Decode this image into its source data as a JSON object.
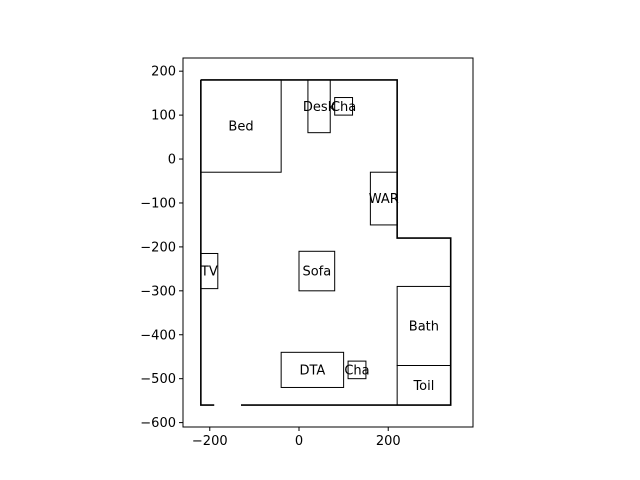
{
  "chart_data": {
    "type": "floor-plan",
    "xlim": [
      -260,
      390
    ],
    "ylim": [
      -610,
      230
    ],
    "x_ticks": [
      -200,
      0,
      200
    ],
    "y_ticks": [
      200,
      100,
      0,
      -100,
      -200,
      -300,
      -400,
      -500,
      -600
    ],
    "x_tick_labels": [
      "−200",
      "0",
      "200"
    ],
    "y_tick_labels": [
      "200",
      "100",
      "0",
      "−100",
      "−200",
      "−300",
      "−400",
      "−500",
      "−600"
    ],
    "wall_outline": [
      [
        -220,
        180
      ],
      [
        220,
        180
      ],
      [
        220,
        -180
      ],
      [
        340,
        -180
      ],
      [
        340,
        -560
      ],
      [
        -220,
        -560
      ],
      [
        -220,
        180
      ]
    ],
    "door_gaps": [
      {
        "from": [
          -190,
          -560
        ],
        "to": [
          -130,
          -560
        ]
      },
      {
        "from": [
          220,
          -350
        ],
        "to": [
          220,
          -410
        ]
      }
    ],
    "rooms": [
      {
        "id": "bed",
        "label": "Bed",
        "x0": -220,
        "y0": -30,
        "x1": -40,
        "y1": 180
      },
      {
        "id": "desk",
        "label": "Desk",
        "x0": 20,
        "y0": 60,
        "x1": 70,
        "y1": 180
      },
      {
        "id": "chair-top",
        "label": "Cha",
        "x0": 80,
        "y0": 100,
        "x1": 120,
        "y1": 140
      },
      {
        "id": "wardrobe",
        "label": "WAR",
        "x0": 160,
        "y0": -150,
        "x1": 220,
        "y1": -30
      },
      {
        "id": "tv",
        "label": "TV",
        "x0": -220,
        "y0": -295,
        "x1": -182,
        "y1": -215
      },
      {
        "id": "sofa",
        "label": "Sofa",
        "x0": 0,
        "y0": -300,
        "x1": 80,
        "y1": -210
      },
      {
        "id": "bath",
        "label": "Bath",
        "x0": 220,
        "y0": -470,
        "x1": 340,
        "y1": -290
      },
      {
        "id": "toilet",
        "label": "Toil",
        "x0": 220,
        "y0": -560,
        "x1": 340,
        "y1": -470
      },
      {
        "id": "dta",
        "label": "DTA",
        "x0": -40,
        "y0": -520,
        "x1": 100,
        "y1": -440
      },
      {
        "id": "chair-bottom",
        "label": "Cha",
        "x0": 110,
        "y0": -500,
        "x1": 150,
        "y1": -460
      }
    ]
  }
}
